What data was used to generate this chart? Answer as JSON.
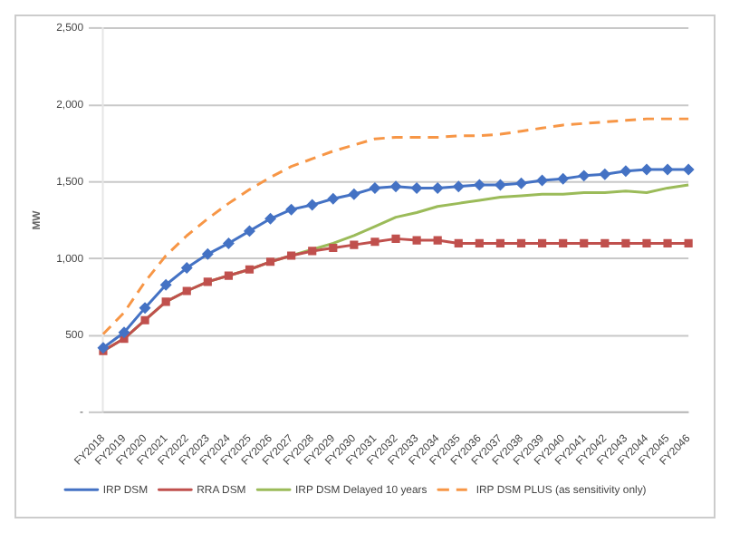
{
  "chart_data": {
    "type": "line",
    "ylabel": "MW",
    "categories": [
      "FY2018",
      "FY2019",
      "FY2020",
      "FY2021",
      "FY2022",
      "FY2023",
      "FY2024",
      "FY2025",
      "FY2026",
      "FY2027",
      "FY2028",
      "FY2029",
      "FY2030",
      "FY2031",
      "FY2032",
      "FY2033",
      "FY2034",
      "FY2035",
      "FY2036",
      "FY2037",
      "FY2038",
      "FY2039",
      "FY2040",
      "FY2041",
      "FY2042",
      "FY2043",
      "FY2044",
      "FY2045",
      "FY2046"
    ],
    "series": [
      {
        "name": "IRP DSM",
        "color": "#4472c4",
        "marker": "diamond",
        "line_style": "solid",
        "values": [
          420,
          520,
          680,
          830,
          940,
          1030,
          1100,
          1180,
          1260,
          1320,
          1350,
          1390,
          1420,
          1460,
          1470,
          1460,
          1460,
          1470,
          1480,
          1480,
          1490,
          1510,
          1520,
          1540,
          1550,
          1570,
          1580,
          1580,
          1580
        ]
      },
      {
        "name": "RRA DSM",
        "color": "#c0504d",
        "marker": "square",
        "line_style": "solid",
        "values": [
          400,
          480,
          600,
          720,
          790,
          850,
          890,
          930,
          980,
          1020,
          1050,
          1070,
          1090,
          1110,
          1130,
          1120,
          1120,
          1100,
          1100,
          1100,
          1100,
          1100,
          1100,
          1100,
          1100,
          1100,
          1100,
          1100,
          1100
        ]
      },
      {
        "name": "IRP DSM Delayed 10 years",
        "color": "#9bbb59",
        "marker": "none",
        "line_style": "solid",
        "values": [
          400,
          480,
          600,
          720,
          790,
          850,
          890,
          930,
          980,
          1020,
          1060,
          1100,
          1150,
          1210,
          1270,
          1300,
          1340,
          1360,
          1380,
          1400,
          1410,
          1420,
          1420,
          1430,
          1430,
          1440,
          1430,
          1460,
          1480
        ]
      },
      {
        "name": "IRP DSM PLUS (as sensitivity only)",
        "color": "#f79646",
        "marker": "none",
        "line_style": "dashed",
        "values": [
          510,
          650,
          850,
          1020,
          1150,
          1260,
          1360,
          1450,
          1530,
          1600,
          1650,
          1700,
          1740,
          1780,
          1790,
          1790,
          1790,
          1800,
          1800,
          1810,
          1830,
          1850,
          1870,
          1880,
          1890,
          1900,
          1910,
          1910,
          1910
        ]
      }
    ],
    "ylim": [
      0,
      2500
    ],
    "yticks": [
      {
        "value": 0,
        "label": "-"
      },
      {
        "value": 500,
        "label": "500"
      },
      {
        "value": 1000,
        "label": "1,000"
      },
      {
        "value": 1500,
        "label": "1,500"
      },
      {
        "value": 2000,
        "label": "2,000"
      },
      {
        "value": 2500,
        "label": "2,500"
      }
    ],
    "grid": "y",
    "legend": "bottom"
  }
}
